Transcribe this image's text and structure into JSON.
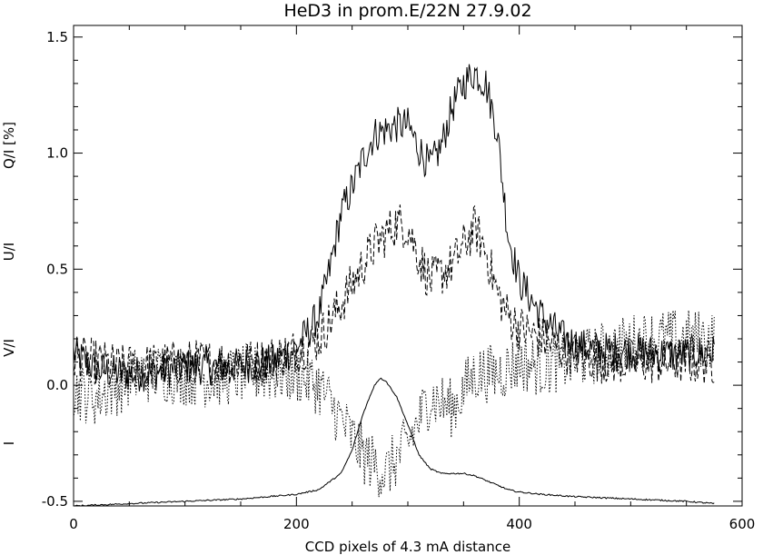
{
  "chart_data": {
    "type": "line",
    "title": "HeD3 in prom.E/22N 27.9.02",
    "xlabel": "CCD pixels of 4.3 mA distance",
    "ylabels": [
      "Q/I [%]",
      "U/I",
      "V/I",
      "I"
    ],
    "xlim": [
      0,
      600
    ],
    "ylim": [
      -0.52,
      1.55
    ],
    "xticks": [
      0,
      200,
      400,
      600
    ],
    "xtick_labels": [
      "0",
      "200",
      "400",
      "600"
    ],
    "yticks": [
      -0.5,
      0.0,
      0.5,
      1.0,
      1.5
    ],
    "ytick_labels": [
      "-0.5",
      "0.0",
      "0.5",
      "1.0",
      "1.5"
    ],
    "grid": false,
    "series": [
      {
        "style": "solid",
        "x": [
          0,
          20,
          40,
          60,
          80,
          100,
          120,
          140,
          160,
          180,
          200,
          220,
          230,
          240,
          250,
          260,
          270,
          280,
          290,
          300,
          310,
          320,
          330,
          340,
          350,
          360,
          370,
          380,
          390,
          400,
          420,
          440,
          460,
          480,
          500,
          520,
          540,
          560,
          575
        ],
        "y": [
          0.14,
          0.07,
          0.05,
          0.05,
          0.06,
          0.08,
          0.08,
          0.08,
          0.09,
          0.1,
          0.16,
          0.3,
          0.5,
          0.74,
          0.85,
          0.98,
          1.08,
          1.1,
          1.12,
          1.12,
          1.02,
          0.94,
          1.03,
          1.2,
          1.3,
          1.35,
          1.3,
          1.1,
          0.65,
          0.45,
          0.3,
          0.2,
          0.16,
          0.15,
          0.15,
          0.14,
          0.13,
          0.14,
          0.14
        ],
        "noise": 0.08
      },
      {
        "style": "dashed",
        "x": [
          0,
          20,
          40,
          60,
          80,
          100,
          120,
          140,
          160,
          180,
          200,
          220,
          240,
          260,
          270,
          280,
          290,
          300,
          310,
          320,
          330,
          340,
          350,
          360,
          370,
          380,
          390,
          400,
          420,
          440,
          460,
          480,
          500,
          520,
          540,
          560,
          575
        ],
        "y": [
          0.12,
          0.1,
          0.08,
          0.08,
          0.09,
          0.1,
          0.1,
          0.1,
          0.1,
          0.12,
          0.15,
          0.2,
          0.35,
          0.52,
          0.6,
          0.65,
          0.7,
          0.68,
          0.55,
          0.45,
          0.48,
          0.52,
          0.6,
          0.68,
          0.58,
          0.4,
          0.3,
          0.25,
          0.2,
          0.15,
          0.12,
          0.1,
          0.1,
          0.1,
          0.1,
          0.1,
          0.1
        ],
        "noise": 0.1
      },
      {
        "style": "dotted",
        "x": [
          0,
          20,
          40,
          60,
          80,
          100,
          120,
          140,
          160,
          180,
          200,
          220,
          240,
          260,
          280,
          300,
          320,
          340,
          360,
          380,
          400,
          420,
          440,
          460,
          480,
          500,
          520,
          540,
          560,
          575
        ],
        "y": [
          -0.02,
          -0.05,
          0.0,
          0.05,
          0.05,
          0.04,
          0.03,
          0.04,
          0.05,
          0.05,
          0.05,
          0.0,
          -0.15,
          -0.3,
          -0.38,
          -0.25,
          -0.05,
          -0.1,
          0.05,
          0.05,
          0.1,
          0.08,
          0.1,
          0.12,
          0.15,
          0.18,
          0.2,
          0.2,
          0.2,
          0.2
        ],
        "noise": 0.13
      },
      {
        "style": "solid",
        "x": [
          0,
          50,
          100,
          150,
          200,
          220,
          240,
          250,
          260,
          270,
          275,
          280,
          290,
          300,
          310,
          320,
          330,
          340,
          350,
          360,
          370,
          380,
          390,
          400,
          420,
          450,
          500,
          550,
          575
        ],
        "y": [
          -0.52,
          -0.51,
          -0.5,
          -0.49,
          -0.47,
          -0.45,
          -0.38,
          -0.28,
          -0.12,
          0.0,
          0.03,
          0.02,
          -0.05,
          -0.17,
          -0.3,
          -0.36,
          -0.38,
          -0.38,
          -0.38,
          -0.39,
          -0.41,
          -0.43,
          -0.45,
          -0.46,
          -0.47,
          -0.48,
          -0.49,
          -0.5,
          -0.51
        ],
        "noise": 0.003
      }
    ]
  }
}
